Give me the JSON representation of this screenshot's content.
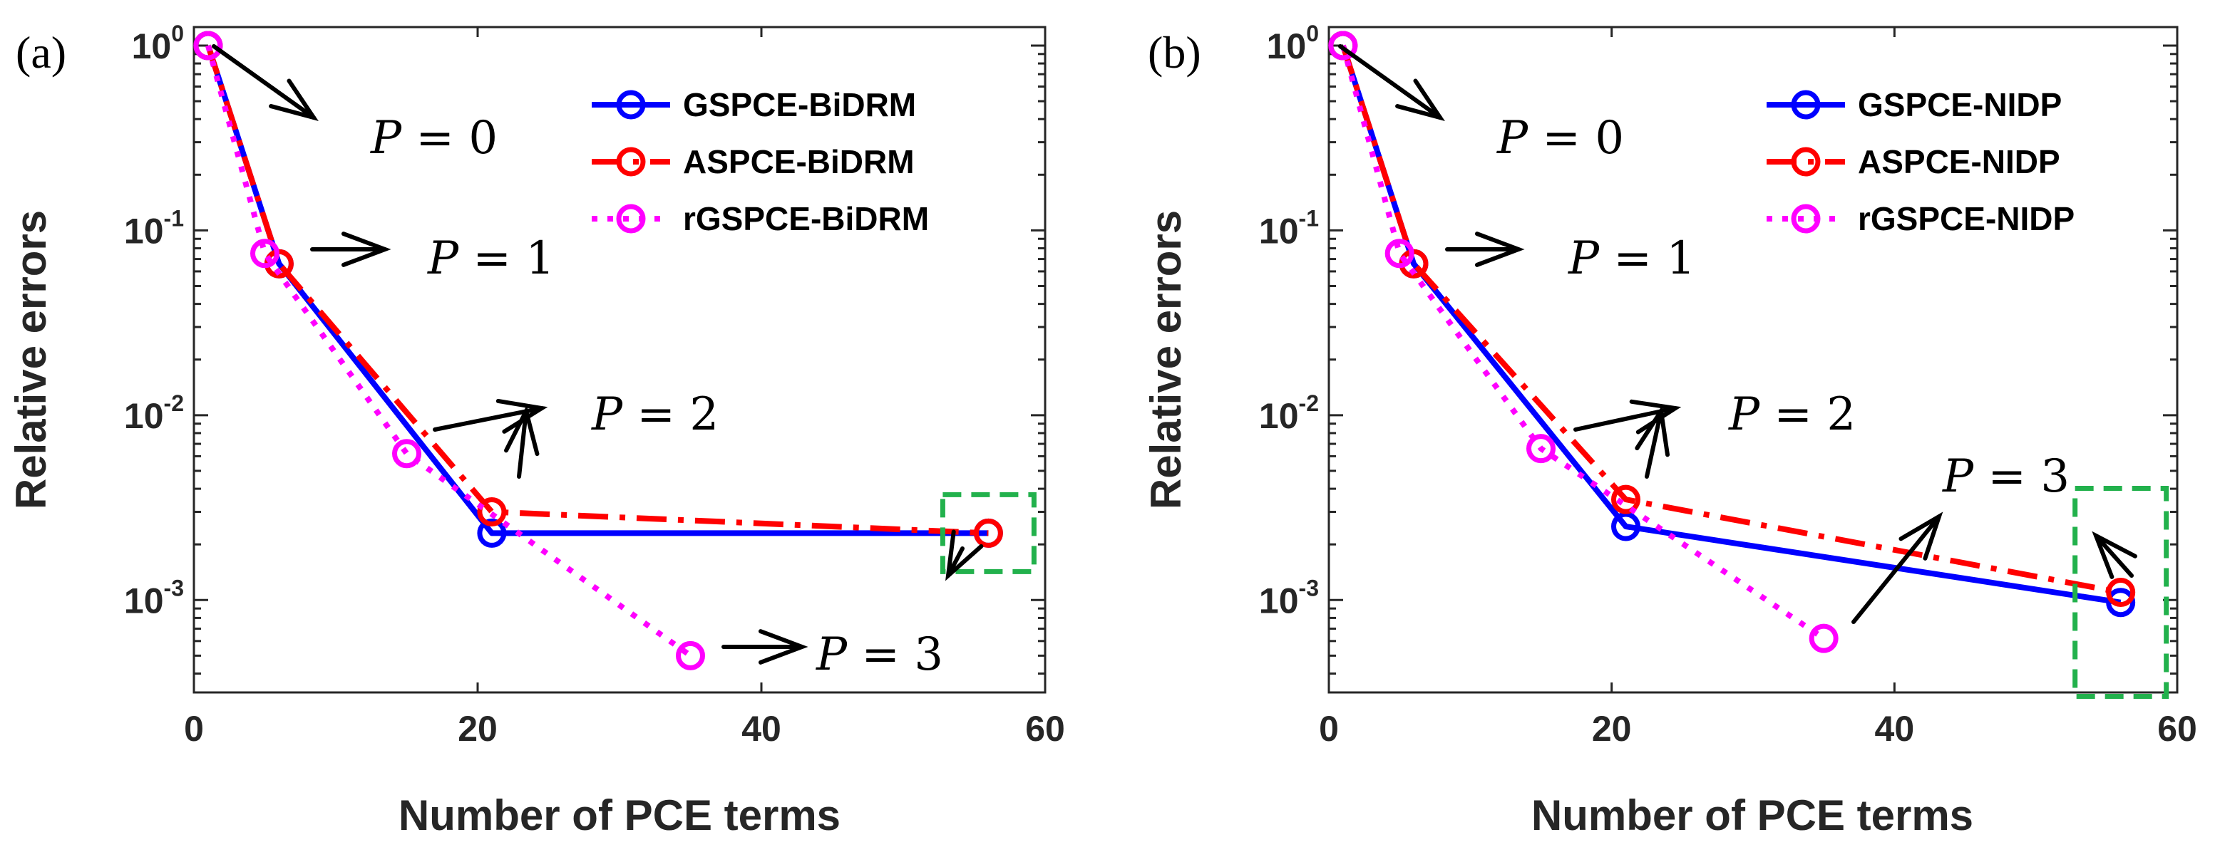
{
  "chart_data": [
    {
      "type": "line",
      "panel_label": "(a)",
      "xlabel": "Number of PCE terms",
      "ylabel": "Relative errors",
      "xlim": [
        0,
        60
      ],
      "ylim_log10": [
        -3.5,
        0.1
      ],
      "xticks": [
        0,
        20,
        40,
        60
      ],
      "yticks": [
        {
          "base": "10",
          "exp": "0",
          "value": 1
        },
        {
          "base": "10",
          "exp": "-1",
          "value": 0.1
        },
        {
          "base": "10",
          "exp": "-2",
          "value": 0.01
        },
        {
          "base": "10",
          "exp": "-3",
          "value": 0.001
        }
      ],
      "legend_position": "top-right",
      "series": [
        {
          "name": "GSPCE-BiDRM",
          "color": "#0000ff",
          "style": "solid",
          "x": [
            1,
            6,
            21,
            56
          ],
          "y": [
            1.0,
            0.066,
            0.0023,
            0.0023
          ]
        },
        {
          "name": "ASPCE-BiDRM",
          "color": "#ff0000",
          "style": "dashdot",
          "x": [
            1,
            6,
            21,
            56
          ],
          "y": [
            1.0,
            0.066,
            0.003,
            0.0023
          ]
        },
        {
          "name": "rGSPCE-BiDRM",
          "color": "#ff00ff",
          "style": "dotted",
          "x": [
            1,
            5,
            15,
            35
          ],
          "y": [
            1.0,
            0.075,
            0.0062,
            0.0005
          ]
        }
      ],
      "annotations": [
        {
          "var": "P",
          "rest": " = 0",
          "label": "P = 0"
        },
        {
          "var": "P",
          "rest": " = 1",
          "label": "P = 1"
        },
        {
          "var": "P",
          "rest": " = 2",
          "label": "P = 2"
        },
        {
          "var": "P",
          "rest": " = 3",
          "label": "P = 3"
        }
      ],
      "highlight_box": {
        "x": 56,
        "y": 0.0023,
        "color": "#22b14c"
      }
    },
    {
      "type": "line",
      "panel_label": "(b)",
      "xlabel": "Number of PCE terms",
      "ylabel": "Relative errors",
      "xlim": [
        0,
        60
      ],
      "ylim_log10": [
        -3.5,
        0.1
      ],
      "xticks": [
        0,
        20,
        40,
        60
      ],
      "yticks": [
        {
          "base": "10",
          "exp": "0",
          "value": 1
        },
        {
          "base": "10",
          "exp": "-1",
          "value": 0.1
        },
        {
          "base": "10",
          "exp": "-2",
          "value": 0.01
        },
        {
          "base": "10",
          "exp": "-3",
          "value": 0.001
        }
      ],
      "legend_position": "top-right",
      "series": [
        {
          "name": "GSPCE-NIDP",
          "color": "#0000ff",
          "style": "solid",
          "x": [
            1,
            6,
            21,
            56
          ],
          "y": [
            1.0,
            0.066,
            0.0025,
            0.00097
          ]
        },
        {
          "name": "ASPCE-NIDP",
          "color": "#ff0000",
          "style": "dashdot",
          "x": [
            1,
            6,
            21,
            56
          ],
          "y": [
            1.0,
            0.066,
            0.0035,
            0.0011
          ]
        },
        {
          "name": "rGSPCE-NIDP",
          "color": "#ff00ff",
          "style": "dotted",
          "x": [
            1,
            5,
            15,
            35
          ],
          "y": [
            1.0,
            0.075,
            0.0066,
            0.00062
          ]
        }
      ],
      "annotations": [
        {
          "var": "P",
          "rest": " = 0",
          "label": "P = 0"
        },
        {
          "var": "P",
          "rest": " = 1",
          "label": "P = 1"
        },
        {
          "var": "P",
          "rest": " = 2",
          "label": "P = 2"
        },
        {
          "var": "P",
          "rest": " = 3",
          "label": "P = 3"
        }
      ],
      "highlight_box": {
        "x": 56,
        "y": 0.0011,
        "color": "#22b14c"
      }
    }
  ]
}
